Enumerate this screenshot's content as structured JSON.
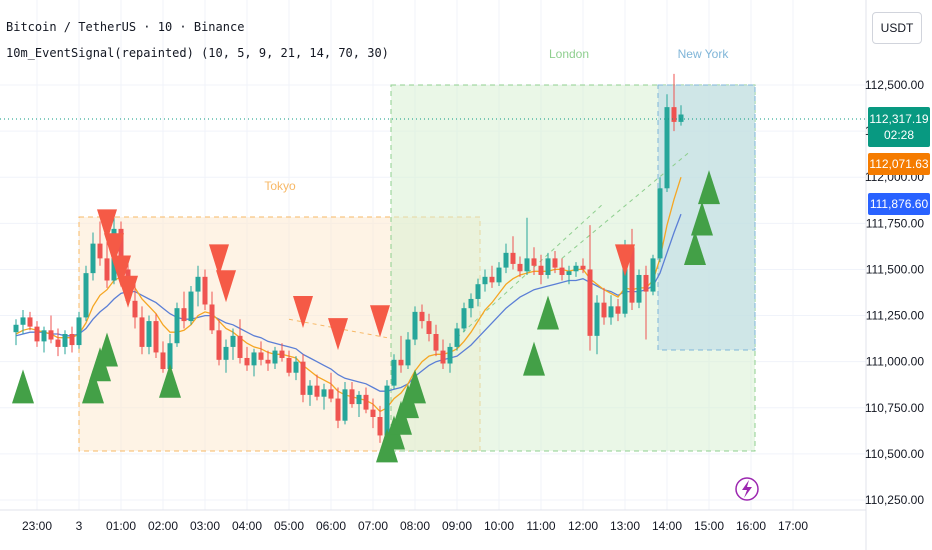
{
  "header": {
    "symbol_line": "Bitcoin / TetherUS · 10 · Binance",
    "indicator_line": "10m_EventSignal(repainted) (10, 5, 9, 21, 14, 70, 30)"
  },
  "currency_button": "USDT",
  "price_tags": {
    "last_price": "112,317.19",
    "countdown": "02:28",
    "orange_ma": "112,071.63",
    "blue_ma": "111,876.60"
  },
  "colors": {
    "up": "#26a69a",
    "down": "#ef5350",
    "ma_fast": "#f5a623",
    "ma_slow": "#5b7fd6",
    "tokyo": "#f7b866",
    "london": "#8fcf8f",
    "new_york": "#7fb5d8",
    "buy_signal": "#43a047",
    "sell_signal": "#f55a46",
    "price_tag": "#089981",
    "orange_tag": "#f57c00",
    "blue_tag": "#2962ff",
    "lightning": "#9c27b0"
  },
  "chart_data": {
    "type": "candlestick",
    "symbol": "Bitcoin / TetherUS",
    "interval": "10",
    "exchange": "Binance",
    "y_axis": {
      "ticks": [
        112500,
        112250,
        112000,
        111750,
        111500,
        111250,
        111000,
        110750,
        110500,
        110250
      ],
      "tick_labels": [
        "112,500.00",
        "112,250.00",
        "112,000.00",
        "111,750.00",
        "111,500.00",
        "111,250.00",
        "111,000.00",
        "110,750.00",
        "110,500.00",
        "110,250.00"
      ]
    },
    "x_axis": {
      "ticks": [
        "23:00",
        "3",
        "01:00",
        "02:00",
        "03:00",
        "04:00",
        "05:00",
        "06:00",
        "07:00",
        "08:00",
        "09:00",
        "10:00",
        "11:00",
        "12:00",
        "13:00",
        "14:00",
        "15:00",
        "16:00",
        "17:00"
      ],
      "start": "22:30",
      "bar_minutes": 10
    },
    "sessions": [
      {
        "name": "Tokyo",
        "start": "00:00",
        "end": "09:00",
        "high": 111800,
        "low": 110520
      },
      {
        "name": "London",
        "start": "07:00",
        "end": "15:00",
        "high": 112500,
        "low": 110520
      },
      {
        "name": "New York",
        "start": "13:00",
        "end": "15:00",
        "high": 112500,
        "low": 111070
      }
    ],
    "current_price": 112317.19,
    "ma_fast_last": 112071.63,
    "ma_slow_last": 111876.6,
    "ohlc": [
      [
        111160,
        111230,
        111090,
        111200
      ],
      [
        111200,
        111280,
        111150,
        111240
      ],
      [
        111240,
        111270,
        111170,
        111190
      ],
      [
        111190,
        111220,
        111080,
        111110
      ],
      [
        111110,
        111190,
        111050,
        111170
      ],
      [
        111170,
        111250,
        111100,
        111120
      ],
      [
        111120,
        111180,
        111030,
        111080
      ],
      [
        111080,
        111170,
        111040,
        111150
      ],
      [
        111150,
        111190,
        111050,
        111090
      ],
      [
        111090,
        111270,
        111070,
        111240
      ],
      [
        111240,
        111520,
        111220,
        111480
      ],
      [
        111480,
        111700,
        111440,
        111640
      ],
      [
        111640,
        111760,
        111520,
        111560
      ],
      [
        111560,
        111650,
        111400,
        111440
      ],
      [
        111440,
        111800,
        111420,
        111720
      ],
      [
        111720,
        111760,
        111480,
        111500
      ],
      [
        111500,
        111560,
        111300,
        111330
      ],
      [
        111330,
        111460,
        111180,
        111240
      ],
      [
        111240,
        111300,
        111040,
        111080
      ],
      [
        111080,
        111250,
        111040,
        111220
      ],
      [
        111220,
        111260,
        111020,
        111050
      ],
      [
        111050,
        111110,
        110940,
        110960
      ],
      [
        110960,
        111150,
        110930,
        111100
      ],
      [
        111100,
        111320,
        111080,
        111290
      ],
      [
        111290,
        111380,
        111180,
        111220
      ],
      [
        111220,
        111410,
        111200,
        111380
      ],
      [
        111380,
        111520,
        111300,
        111460
      ],
      [
        111460,
        111500,
        111280,
        111310
      ],
      [
        111310,
        111380,
        111150,
        111170
      ],
      [
        111170,
        111230,
        110980,
        111010
      ],
      [
        111010,
        111120,
        110940,
        111080
      ],
      [
        111080,
        111180,
        111010,
        111140
      ],
      [
        111140,
        111230,
        110990,
        111020
      ],
      [
        111020,
        111080,
        110950,
        110980
      ],
      [
        110980,
        111070,
        110920,
        111050
      ],
      [
        111050,
        111110,
        110980,
        111010
      ],
      [
        111010,
        111060,
        110950,
        110990
      ],
      [
        110990,
        111080,
        110960,
        111060
      ],
      [
        111060,
        111100,
        111000,
        111020
      ],
      [
        111020,
        111060,
        110920,
        110940
      ],
      [
        110940,
        111030,
        110900,
        111000
      ],
      [
        111000,
        111040,
        110780,
        110820
      ],
      [
        110820,
        110900,
        110760,
        110870
      ],
      [
        110870,
        110930,
        110790,
        110810
      ],
      [
        110810,
        110880,
        110740,
        110850
      ],
      [
        110850,
        110940,
        110780,
        110800
      ],
      [
        110800,
        110860,
        110640,
        110680
      ],
      [
        110680,
        110890,
        110660,
        110850
      ],
      [
        110850,
        110890,
        110750,
        110770
      ],
      [
        110770,
        110840,
        110700,
        110820
      ],
      [
        110820,
        110860,
        110720,
        110740
      ],
      [
        110740,
        110800,
        110640,
        110700
      ],
      [
        110700,
        110760,
        110560,
        110600
      ],
      [
        110600,
        110900,
        110580,
        110870
      ],
      [
        110870,
        111040,
        110850,
        111010
      ],
      [
        111010,
        111140,
        110940,
        110980
      ],
      [
        110980,
        111160,
        110960,
        111120
      ],
      [
        111120,
        111300,
        111090,
        111270
      ],
      [
        111270,
        111310,
        111180,
        111220
      ],
      [
        111220,
        111260,
        111110,
        111150
      ],
      [
        111150,
        111200,
        111030,
        111060
      ],
      [
        111060,
        111120,
        110960,
        110990
      ],
      [
        110990,
        111100,
        110940,
        111080
      ],
      [
        111080,
        111210,
        111060,
        111180
      ],
      [
        111180,
        111320,
        111160,
        111290
      ],
      [
        111290,
        111370,
        111240,
        111340
      ],
      [
        111340,
        111450,
        111300,
        111420
      ],
      [
        111420,
        111500,
        111380,
        111460
      ],
      [
        111460,
        111520,
        111400,
        111430
      ],
      [
        111430,
        111540,
        111410,
        111510
      ],
      [
        111510,
        111640,
        111480,
        111590
      ],
      [
        111590,
        111680,
        111500,
        111530
      ],
      [
        111530,
        111570,
        111460,
        111490
      ],
      [
        111490,
        111780,
        111470,
        111560
      ],
      [
        111560,
        111620,
        111470,
        111520
      ],
      [
        111520,
        111580,
        111420,
        111470
      ],
      [
        111470,
        111590,
        111450,
        111560
      ],
      [
        111560,
        111600,
        111480,
        111510
      ],
      [
        111510,
        111560,
        111440,
        111470
      ],
      [
        111470,
        111520,
        111420,
        111490
      ],
      [
        111490,
        111540,
        111460,
        111520
      ],
      [
        111520,
        111560,
        111480,
        111500
      ],
      [
        111500,
        111740,
        111060,
        111140
      ],
      [
        111140,
        111360,
        111040,
        111320
      ],
      [
        111320,
        111400,
        111200,
        111240
      ],
      [
        111240,
        111360,
        111200,
        111300
      ],
      [
        111300,
        111340,
        111220,
        111260
      ],
      [
        111260,
        111660,
        111240,
        111620
      ],
      [
        111620,
        111720,
        111280,
        111320
      ],
      [
        111320,
        111500,
        111290,
        111470
      ],
      [
        111470,
        111520,
        111120,
        111380
      ],
      [
        111380,
        111580,
        111360,
        111560
      ],
      [
        111560,
        112000,
        111540,
        111940
      ],
      [
        111940,
        112450,
        111920,
        112380
      ],
      [
        112380,
        112560,
        112250,
        112300
      ],
      [
        112300,
        112390,
        112280,
        112340
      ]
    ],
    "ma_fast": [
      111150,
      111170,
      111180,
      111170,
      111160,
      111150,
      111130,
      111130,
      111130,
      111150,
      111210,
      111300,
      111360,
      111390,
      111440,
      111460,
      111440,
      111400,
      111340,
      111300,
      111260,
      111200,
      111160,
      111160,
      111170,
      111200,
      111250,
      111270,
      111260,
      111220,
      111180,
      111160,
      111130,
      111100,
      111080,
      111070,
      111050,
      111040,
      111040,
      111030,
      111020,
      110980,
      110950,
      110920,
      110900,
      110880,
      110840,
      110820,
      110810,
      110800,
      110790,
      110770,
      110730,
      110750,
      110800,
      110830,
      110880,
      110950,
      111000,
      111030,
      111040,
      111040,
      111050,
      111070,
      111110,
      111160,
      111220,
      111280,
      111320,
      111370,
      111420,
      111450,
      111470,
      111480,
      111490,
      111490,
      111490,
      111500,
      111500,
      111490,
      111500,
      111500,
      111450,
      111420,
      111390,
      111370,
      111350,
      111400,
      111390,
      111400,
      111400,
      111440,
      111560,
      111740,
      111880,
      112000
    ],
    "ma_slow": [
      111140,
      111150,
      111160,
      111160,
      111160,
      111150,
      111150,
      111140,
      111140,
      111150,
      111180,
      111230,
      111270,
      111300,
      111340,
      111370,
      111380,
      111380,
      111360,
      111340,
      111320,
      111290,
      111260,
      111240,
      111230,
      111230,
      111240,
      111250,
      111250,
      111230,
      111210,
      111200,
      111180,
      111160,
      111140,
      111130,
      111110,
      111100,
      111090,
      111080,
      111070,
      111040,
      111020,
      111000,
      110980,
      110960,
      110930,
      110910,
      110900,
      110890,
      110880,
      110860,
      110840,
      110840,
      110850,
      110860,
      110880,
      110920,
      110950,
      110980,
      111000,
      111010,
      111020,
      111030,
      111060,
      111090,
      111130,
      111170,
      111210,
      111250,
      111290,
      111320,
      111350,
      111370,
      111390,
      111400,
      111410,
      111420,
      111430,
      111440,
      111440,
      111450,
      111430,
      111410,
      111390,
      111380,
      111360,
      111380,
      111380,
      111380,
      111390,
      111410,
      111480,
      111590,
      111700,
      111800
    ],
    "buy_signals": [
      {
        "x": "22:40",
        "y": 110850
      },
      {
        "x": "00:20",
        "y": 110850
      },
      {
        "x": "00:30",
        "y": 110970
      },
      {
        "x": "00:40",
        "y": 111050
      },
      {
        "x": "02:10",
        "y": 110880
      },
      {
        "x": "07:20",
        "y": 110530
      },
      {
        "x": "07:30",
        "y": 110600
      },
      {
        "x": "07:40",
        "y": 110680
      },
      {
        "x": "07:50",
        "y": 110770
      },
      {
        "x": "08:00",
        "y": 110850
      },
      {
        "x": "10:50",
        "y": 111000
      },
      {
        "x": "11:10",
        "y": 111250
      },
      {
        "x": "14:40",
        "y": 111600
      },
      {
        "x": "14:50",
        "y": 111760
      },
      {
        "x": "15:00",
        "y": 111930
      }
    ],
    "sell_signals": [
      {
        "x": "00:40",
        "y": 111750
      },
      {
        "x": "00:50",
        "y": 111620
      },
      {
        "x": "01:00",
        "y": 111500
      },
      {
        "x": "01:10",
        "y": 111390
      },
      {
        "x": "03:20",
        "y": 111560
      },
      {
        "x": "03:30",
        "y": 111420
      },
      {
        "x": "05:20",
        "y": 111280
      },
      {
        "x": "06:10",
        "y": 111160
      },
      {
        "x": "07:10",
        "y": 111230
      },
      {
        "x": "13:00",
        "y": 111560
      }
    ],
    "session_lines": [
      {
        "from_x": "05:00",
        "from_y": 111230,
        "to_x": "07:20",
        "to_y": 111130
      },
      {
        "from_x": "11:30",
        "from_y": 111560,
        "to_x": "14:30",
        "to_y": 112130
      },
      {
        "from_x": "09:00",
        "from_y": 111130,
        "to_x": "12:30",
        "to_y": 111860
      }
    ]
  }
}
